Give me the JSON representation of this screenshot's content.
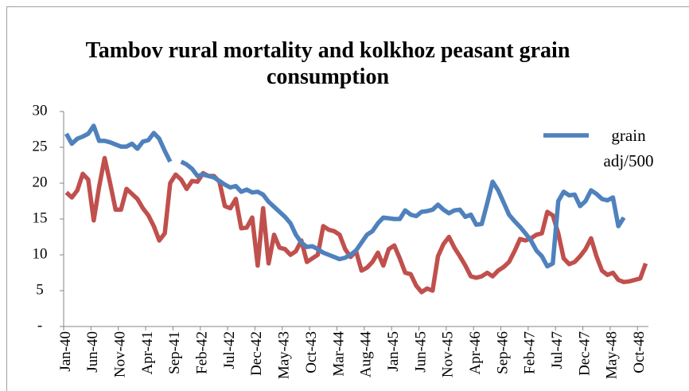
{
  "chart_data": {
    "type": "line",
    "title": "Tambov rural mortality and kolkhoz peasant grain consumption",
    "categories": [
      "Jan-40",
      null,
      null,
      null,
      null,
      "Jun-40",
      null,
      null,
      null,
      null,
      "Nov-40",
      null,
      null,
      null,
      null,
      "Apr-41",
      null,
      null,
      null,
      null,
      "Sep-41",
      null,
      null,
      null,
      null,
      "Feb-42",
      null,
      null,
      null,
      null,
      "Jul-42",
      null,
      null,
      null,
      null,
      "Dec-42",
      null,
      null,
      null,
      null,
      "May-43",
      null,
      null,
      null,
      null,
      "Oct-43",
      null,
      null,
      null,
      null,
      "Mar-44",
      null,
      null,
      null,
      null,
      "Aug-44",
      null,
      null,
      null,
      null,
      "Jan-45",
      null,
      null,
      null,
      null,
      "Jun-45",
      null,
      null,
      null,
      null,
      "Nov-45",
      null,
      null,
      null,
      null,
      "Apr-46",
      null,
      null,
      null,
      null,
      "Sep-46",
      null,
      null,
      null,
      null,
      "Feb-47",
      null,
      null,
      null,
      null,
      "Jul-47",
      null,
      null,
      null,
      null,
      "Dec-47",
      null,
      null,
      null,
      null,
      "May-48",
      null,
      null,
      null,
      null,
      "Oct-48",
      null
    ],
    "series": [
      {
        "color": "#c0504d",
        "values": [
          18.7,
          18.0,
          19.0,
          21.3,
          20.5,
          14.8,
          19.5,
          23.5,
          20.0,
          16.3,
          16.3,
          19.2,
          18.5,
          17.8,
          16.5,
          15.5,
          14.0,
          12.0,
          13.0,
          20.0,
          21.2,
          20.5,
          19.2,
          20.3,
          20.2,
          21.4,
          21.0,
          21.0,
          20.2,
          16.8,
          16.5,
          17.8,
          13.7,
          13.8,
          15.2,
          8.5,
          16.5,
          8.8,
          12.8,
          11.0,
          10.8,
          10.0,
          10.5,
          12.0,
          9.0,
          9.5,
          10.0,
          14.0,
          13.5,
          13.3,
          12.8,
          10.8,
          9.7,
          10.5,
          7.8,
          8.2,
          9.0,
          10.3,
          8.5,
          10.8,
          11.3,
          9.5,
          7.5,
          7.3,
          5.7,
          4.8,
          5.3,
          5.0,
          9.8,
          11.5,
          12.5,
          11.0,
          9.8,
          8.5,
          7.0,
          6.8,
          7.0,
          7.5,
          7.0,
          7.8,
          8.3,
          9.0,
          10.5,
          12.2,
          12.0,
          12.3,
          12.8,
          13.0,
          16.0,
          15.5,
          13.0,
          9.5,
          8.7,
          9.0,
          9.8,
          10.8,
          12.3,
          9.8,
          7.8,
          7.2,
          7.5,
          6.5,
          6.2,
          6.3,
          6.5,
          6.7,
          8.8
        ]
      },
      {
        "name": "grain adj/500",
        "color": "#4f81bd",
        "values": [
          26.9,
          25.5,
          26.2,
          26.5,
          26.9,
          28.0,
          25.9,
          25.9,
          25.7,
          25.4,
          25.1,
          25.1,
          25.5,
          24.8,
          25.8,
          26.0,
          27.0,
          26.2,
          24.5,
          23.0,
          null,
          23.0,
          22.6,
          22.0,
          21.0,
          21.2,
          21.0,
          20.8,
          20.3,
          19.8,
          19.4,
          19.6,
          18.8,
          19.1,
          18.7,
          18.8,
          18.4,
          17.4,
          16.7,
          16.0,
          15.3,
          14.4,
          12.8,
          11.7,
          11.1,
          11.2,
          10.8,
          10.3,
          10.0,
          9.7,
          9.4,
          9.6,
          10.0,
          10.6,
          11.7,
          12.8,
          13.3,
          14.4,
          15.2,
          15.1,
          15.0,
          15.0,
          16.2,
          15.6,
          15.4,
          16.0,
          16.1,
          16.3,
          17.0,
          16.3,
          15.8,
          16.2,
          16.3,
          15.3,
          15.6,
          14.2,
          14.3,
          17.2,
          20.2,
          19.0,
          17.3,
          15.6,
          14.7,
          13.9,
          13.0,
          12.0,
          10.6,
          9.8,
          8.4,
          8.8,
          17.5,
          18.8,
          18.3,
          18.4,
          16.8,
          17.5,
          19.0,
          18.5,
          17.8,
          17.6,
          18.0,
          14.0,
          15.2,
          null,
          null,
          null,
          null
        ]
      }
    ],
    "ylim": [
      0,
      30
    ],
    "yticks": [
      {
        "value": 0,
        "label": "-"
      },
      5,
      10,
      15,
      20,
      25,
      30
    ],
    "grid": false
  }
}
